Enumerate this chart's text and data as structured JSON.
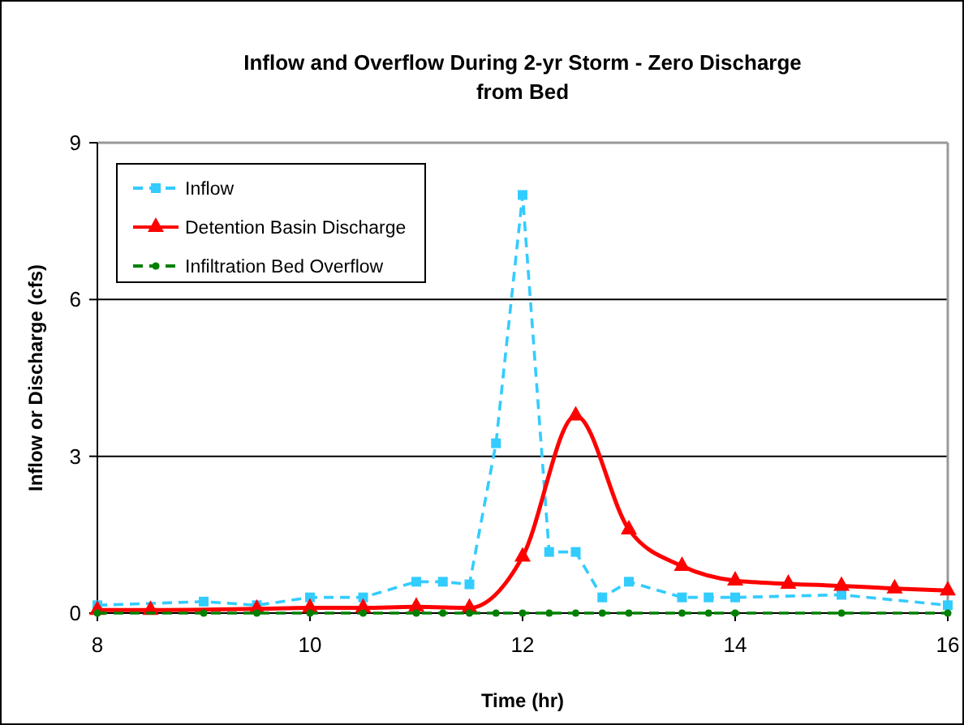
{
  "chart_data": {
    "type": "line",
    "title": "Inflow and Overflow During 2-yr Storm - Zero Discharge from Bed",
    "xlabel": "Time (hr)",
    "ylabel": "Inflow or Discharge (cfs)",
    "xlim": [
      8,
      16
    ],
    "xticks": [
      8,
      10,
      12,
      14,
      16
    ],
    "ylim": [
      0,
      9
    ],
    "yticks": [
      0,
      3,
      6,
      9
    ],
    "grid": "y",
    "legend": "top left",
    "series": [
      {
        "name": "Inflow",
        "color": "#33ccff",
        "marker": "square",
        "line_style": "dashed",
        "x": [
          8,
          9,
          9.5,
          10,
          10.5,
          11,
          11.25,
          11.5,
          11.75,
          12,
          12.25,
          12.5,
          12.75,
          13,
          13.5,
          13.75,
          14,
          15,
          16
        ],
        "values": [
          0.15,
          0.22,
          0.15,
          0.3,
          0.3,
          0.6,
          0.6,
          0.55,
          3.25,
          8.0,
          1.17,
          1.17,
          0.3,
          0.6,
          0.3,
          0.3,
          0.3,
          0.35,
          0.15
        ]
      },
      {
        "name": "Detention Basin Discharge",
        "color": "#ff0000",
        "marker": "triangle",
        "line_style": "solid",
        "x": [
          8,
          8.5,
          9.5,
          10,
          10.5,
          11,
          11.5,
          12,
          12.5,
          13,
          13.5,
          14,
          14.5,
          15,
          15.5,
          16
        ],
        "values": [
          0.06,
          0.06,
          0.08,
          0.1,
          0.1,
          0.12,
          0.1,
          1.08,
          3.78,
          1.6,
          0.9,
          0.62,
          0.56,
          0.52,
          0.47,
          0.43
        ]
      },
      {
        "name": "Infiltration Bed Overflow",
        "color": "#008000",
        "marker": "circle",
        "line_style": "dashed",
        "x": [
          8,
          9,
          9.5,
          10,
          10.5,
          11,
          11.25,
          11.5,
          11.75,
          12,
          12.25,
          12.5,
          12.75,
          13,
          13.5,
          13.75,
          14,
          15,
          16
        ],
        "values": [
          0,
          0,
          0,
          0,
          0,
          0,
          0,
          0,
          0,
          0,
          0,
          0,
          0,
          0,
          0,
          0,
          0,
          0,
          0
        ]
      }
    ]
  }
}
